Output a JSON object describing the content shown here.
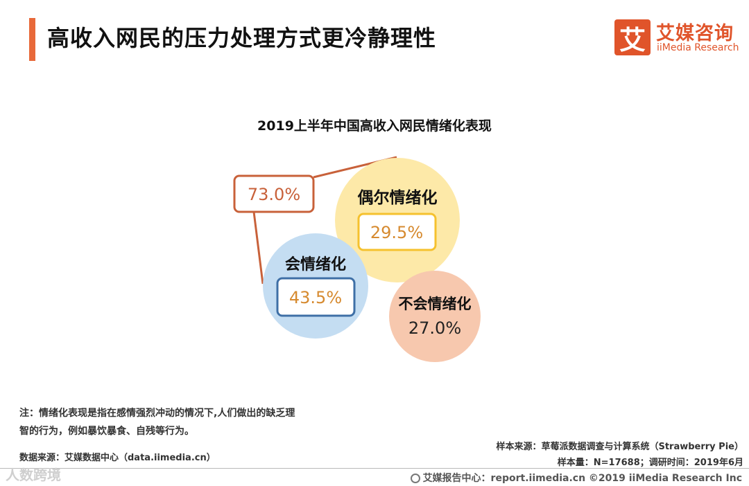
{
  "header": {
    "title": "高收入网民的压力处理方式更冷静理性",
    "accent_color": "#e8693a"
  },
  "logo": {
    "icon_char": "艾",
    "name_cn": "艾媒咨询",
    "name_en": "iiMedia Research",
    "color": "#e0542a"
  },
  "chart_data": {
    "type": "bubble",
    "title": "2019上半年中国高收入网民情绪化表现",
    "total": {
      "label": "",
      "value": "73.0%",
      "color": "#c8613a"
    },
    "categories": [
      {
        "key": "occasional",
        "label": "偶尔情绪化",
        "value": "29.5%",
        "fill": "#fde9a8",
        "box_color": "#f5c12e",
        "value_color": "#d68a2f"
      },
      {
        "key": "emotional",
        "label": "会情绪化",
        "value": "43.5%",
        "fill": "#c4ddf2",
        "box_color": "#3e6fa6",
        "value_color": "#d68a2f"
      },
      {
        "key": "non_emotional",
        "label": "不会情绪化",
        "value": "27.0%",
        "fill": "#f7c8ae",
        "box_color": "",
        "value_color": "#222222"
      }
    ]
  },
  "notes": {
    "note_line1": "注：情绪化表现是指在感情强烈冲动的情况下,人们做出的缺乏理",
    "note_line2": "智的行为，例如暴饮暴食、自残等行为。",
    "data_source": "数据来源：艾媒数据中心（data.iimedia.cn）",
    "sample_source": "样本来源：草莓派数据调查与计算系统（Strawberry Pie）",
    "sample_size": "样本量：N=17688；调研时间：2019年6月"
  },
  "footer": {
    "text": "艾媒报告中心：report.iimedia.cn  ©2019  iiMedia Research  Inc",
    "watermark": "人数跨境"
  }
}
